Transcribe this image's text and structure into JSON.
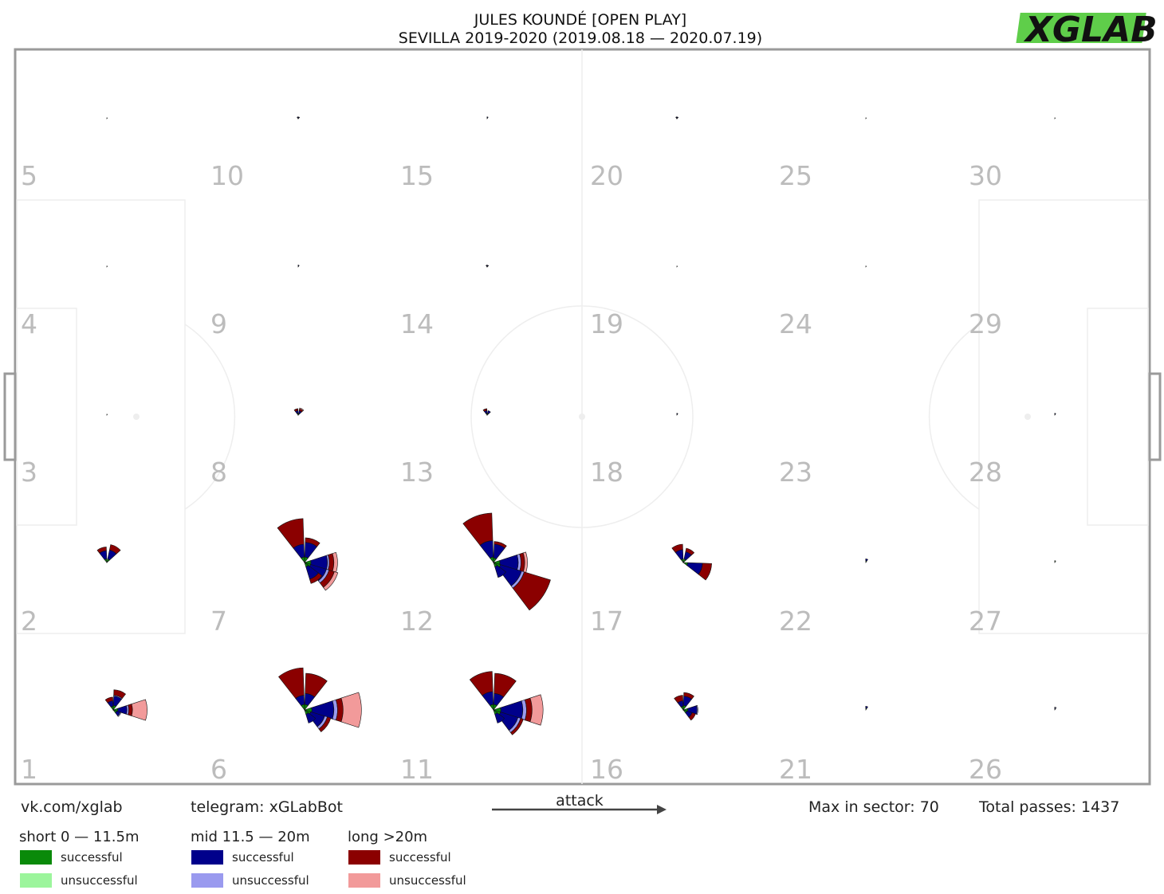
{
  "header": {
    "title_line1": "JULES KOUNDÉ [OPEN PLAY]",
    "title_line2": "SEVILLA 2019-2020 (2019.08.18 — 2020.07.19)"
  },
  "logo": {
    "text": "XGLAB",
    "accent_color": "#5fce4a"
  },
  "footer": {
    "vk": "vk.com/xglab",
    "telegram": "telegram: xGLabBot",
    "attack_label": "attack",
    "max_sector": "Max in sector: 70",
    "total_passes": "Total passes: 1437"
  },
  "legend": {
    "groups": [
      {
        "title": "short 0 — 11.5m",
        "items": [
          {
            "label": "successful",
            "color": "#0a8a0a"
          },
          {
            "label": "unsuccessful",
            "color": "#9cf59c"
          }
        ]
      },
      {
        "title": "mid 11.5 — 20m",
        "items": [
          {
            "label": "successful",
            "color": "#00008b"
          },
          {
            "label": "unsuccessful",
            "color": "#9a9aef"
          }
        ]
      },
      {
        "title": "long >20m",
        "items": [
          {
            "label": "successful",
            "color": "#8b0000"
          },
          {
            "label": "unsuccessful",
            "color": "#f29a9a"
          }
        ]
      }
    ]
  },
  "chart_data": {
    "type": "polar-rose-grid",
    "max_in_sector": 70,
    "total_passes": 1437,
    "attack_direction": "right",
    "zone_numbers": [
      {
        "zone": 5,
        "col": 0,
        "row": 0
      },
      {
        "zone": 10,
        "col": 1,
        "row": 0
      },
      {
        "zone": 15,
        "col": 2,
        "row": 0
      },
      {
        "zone": 20,
        "col": 3,
        "row": 0
      },
      {
        "zone": 25,
        "col": 4,
        "row": 0
      },
      {
        "zone": 30,
        "col": 5,
        "row": 0
      },
      {
        "zone": 4,
        "col": 0,
        "row": 1
      },
      {
        "zone": 9,
        "col": 1,
        "row": 1
      },
      {
        "zone": 14,
        "col": 2,
        "row": 1
      },
      {
        "zone": 19,
        "col": 3,
        "row": 1
      },
      {
        "zone": 24,
        "col": 4,
        "row": 1
      },
      {
        "zone": 29,
        "col": 5,
        "row": 1
      },
      {
        "zone": 3,
        "col": 0,
        "row": 2
      },
      {
        "zone": 8,
        "col": 1,
        "row": 2
      },
      {
        "zone": 13,
        "col": 2,
        "row": 2
      },
      {
        "zone": 18,
        "col": 3,
        "row": 2
      },
      {
        "zone": 23,
        "col": 4,
        "row": 2
      },
      {
        "zone": 28,
        "col": 5,
        "row": 2
      },
      {
        "zone": 2,
        "col": 0,
        "row": 3
      },
      {
        "zone": 7,
        "col": 1,
        "row": 3
      },
      {
        "zone": 12,
        "col": 2,
        "row": 3
      },
      {
        "zone": 17,
        "col": 3,
        "row": 3
      },
      {
        "zone": 22,
        "col": 4,
        "row": 3
      },
      {
        "zone": 27,
        "col": 5,
        "row": 3
      },
      {
        "zone": 1,
        "col": 0,
        "row": 4
      },
      {
        "zone": 6,
        "col": 1,
        "row": 4
      },
      {
        "zone": 11,
        "col": 2,
        "row": 4
      },
      {
        "zone": 16,
        "col": 3,
        "row": 4
      },
      {
        "zone": 21,
        "col": 4,
        "row": 4
      },
      {
        "zone": 26,
        "col": 5,
        "row": 4
      }
    ],
    "sector_note": "counts per 8 directions (0=forward/right, counter-clockwise) as [short_s, short_u, mid_s, mid_u, long_s, long_u]",
    "zones": [
      {
        "zone": 5,
        "sectors": [
          [
            1,
            0,
            0,
            0,
            0,
            0
          ]
        ]
      },
      {
        "zone": 10,
        "sectors": [
          [
            1,
            0,
            1,
            0,
            0,
            0
          ],
          [
            1,
            0,
            1,
            0,
            0,
            0
          ]
        ]
      },
      {
        "zone": 15,
        "sectors": [
          [
            1,
            0,
            1,
            0,
            0,
            0
          ]
        ]
      },
      {
        "zone": 20,
        "sectors": [
          [
            1,
            0,
            1,
            0,
            0,
            0
          ],
          [
            1,
            0,
            1,
            0,
            0,
            0
          ]
        ]
      },
      {
        "zone": 25,
        "sectors": [
          [
            1,
            0,
            0,
            0,
            0,
            0
          ]
        ]
      },
      {
        "zone": 30,
        "sectors": [
          [
            1,
            0,
            0,
            0,
            0,
            0
          ]
        ]
      },
      {
        "zone": 4,
        "sectors": [
          [
            1,
            0,
            0,
            0,
            0,
            0
          ]
        ]
      },
      {
        "zone": 9,
        "sectors": [
          [
            1,
            0,
            1,
            0,
            0,
            0
          ]
        ]
      },
      {
        "zone": 14,
        "sectors": [
          [
            1,
            0,
            1,
            0,
            0,
            0
          ],
          [
            1,
            0,
            1,
            0,
            0,
            0
          ]
        ]
      },
      {
        "zone": 19,
        "sectors": [
          [
            1,
            0,
            0,
            0,
            0,
            0
          ]
        ]
      },
      {
        "zone": 24,
        "sectors": [
          [
            1,
            0,
            0,
            0,
            0,
            0
          ]
        ]
      },
      {
        "zone": 3,
        "sectors": [
          [
            1,
            0,
            0,
            0,
            0,
            0
          ]
        ]
      },
      {
        "zone": 8,
        "sectors": [
          [
            2,
            0,
            3,
            0,
            2,
            0
          ],
          [
            2,
            0,
            3,
            0,
            2,
            1
          ]
        ]
      },
      {
        "zone": 13,
        "sectors": [
          [
            2,
            0,
            3,
            0,
            2,
            0
          ],
          [
            2,
            0,
            3,
            0,
            0,
            0
          ]
        ]
      },
      {
        "zone": 18,
        "sectors": [
          [
            1,
            0,
            1,
            0,
            0,
            0
          ]
        ]
      },
      {
        "zone": 28,
        "sectors": [
          [
            1,
            0,
            1,
            0,
            0,
            0
          ]
        ]
      },
      {
        "zone": 2,
        "sectors": [
          [
            4,
            0,
            9,
            0,
            4,
            0
          ],
          [
            4,
            0,
            10,
            0,
            6,
            0
          ]
        ]
      },
      {
        "zone": 7,
        "sectors": [
          [
            6,
            0,
            14,
            0,
            28,
            0
          ],
          [
            6,
            0,
            16,
            0,
            5,
            0
          ],
          [
            7,
            0,
            18,
            2,
            5,
            4
          ],
          [
            7,
            0,
            18,
            3,
            6,
            4
          ],
          [
            5,
            0,
            14,
            0,
            5,
            0
          ]
        ]
      },
      {
        "zone": 12,
        "sectors": [
          [
            6,
            0,
            18,
            0,
            30,
            0
          ],
          [
            5,
            0,
            15,
            0,
            3,
            0
          ],
          [
            7,
            0,
            20,
            3,
            4,
            3
          ],
          [
            8,
            0,
            24,
            3,
            30,
            0
          ],
          [
            5,
            0,
            12,
            0,
            0,
            0
          ]
        ]
      },
      {
        "zone": 17,
        "sectors": [
          [
            4,
            0,
            10,
            0,
            6,
            0
          ],
          [
            4,
            0,
            8,
            0,
            4,
            0
          ],
          [
            5,
            0,
            16,
            0,
            10,
            0
          ]
        ]
      },
      {
        "zone": 22,
        "sectors": [
          [
            2,
            0,
            2,
            0,
            0,
            0
          ]
        ]
      },
      {
        "zone": 27,
        "sectors": [
          [
            1,
            1,
            0,
            0,
            0,
            0
          ]
        ]
      },
      {
        "zone": 1,
        "sectors": [
          [
            4,
            0,
            6,
            0,
            4,
            0
          ],
          [
            5,
            0,
            10,
            1,
            6,
            0
          ],
          [
            5,
            0,
            10,
            2,
            4,
            16
          ],
          [
            4,
            0,
            4,
            1,
            0,
            0
          ]
        ]
      },
      {
        "zone": 6,
        "sectors": [
          [
            6,
            0,
            10,
            0,
            30,
            0
          ],
          [
            6,
            0,
            12,
            0,
            22,
            0
          ],
          [
            8,
            0,
            24,
            4,
            6,
            20
          ],
          [
            7,
            0,
            16,
            3,
            4,
            0
          ],
          [
            5,
            0,
            10,
            0,
            0,
            0
          ]
        ]
      },
      {
        "zone": 11,
        "sectors": [
          [
            6,
            0,
            14,
            0,
            22,
            0
          ],
          [
            6,
            0,
            12,
            0,
            22,
            0
          ],
          [
            8,
            0,
            24,
            4,
            6,
            12
          ],
          [
            8,
            0,
            20,
            3,
            3,
            0
          ],
          [
            5,
            0,
            10,
            0,
            0,
            0
          ]
        ]
      },
      {
        "zone": 16,
        "sectors": [
          [
            4,
            0,
            6,
            0,
            6,
            0
          ],
          [
            5,
            0,
            10,
            0,
            4,
            0
          ],
          [
            5,
            0,
            10,
            1,
            0,
            0
          ],
          [
            4,
            0,
            6,
            0,
            4,
            0
          ]
        ]
      },
      {
        "zone": 21,
        "sectors": [
          [
            2,
            0,
            2,
            0,
            0,
            0
          ]
        ]
      },
      {
        "zone": 26,
        "sectors": [
          [
            1,
            0,
            1,
            1,
            0,
            0
          ]
        ]
      }
    ]
  }
}
